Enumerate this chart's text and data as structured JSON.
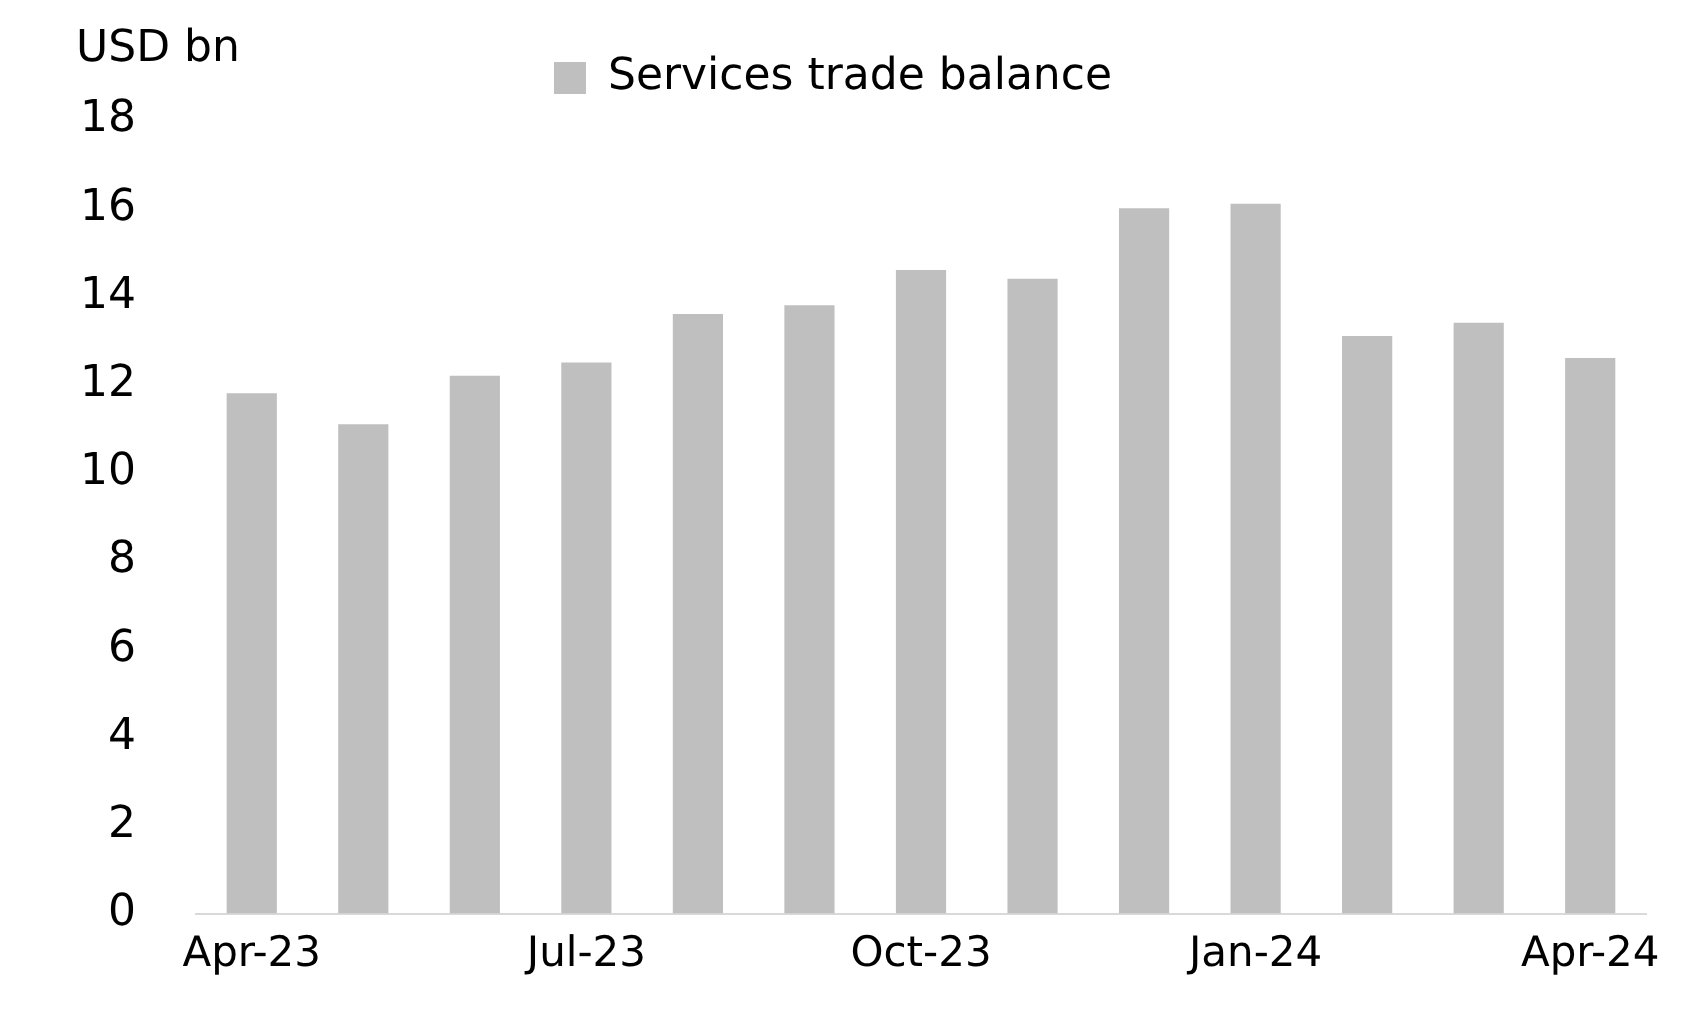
{
  "chart_data": {
    "type": "bar",
    "ylabel": "USD bn",
    "categories": [
      "Apr-23",
      null,
      null,
      "Jul-23",
      null,
      null,
      "Oct-23",
      null,
      null,
      "Jan-24",
      null,
      null,
      "Apr-24"
    ],
    "series": [
      {
        "name": "Services trade balance",
        "color": "#bfbfbf",
        "values": [
          11.8,
          11.1,
          12.2,
          12.5,
          13.6,
          13.8,
          14.6,
          14.4,
          16.0,
          16.1,
          13.1,
          13.4,
          12.6
        ]
      }
    ],
    "ylim": [
      0,
      18
    ],
    "yticks": [
      0,
      2,
      4,
      6,
      8,
      10,
      12,
      14,
      16,
      18
    ],
    "grid": false,
    "legend": "top"
  }
}
